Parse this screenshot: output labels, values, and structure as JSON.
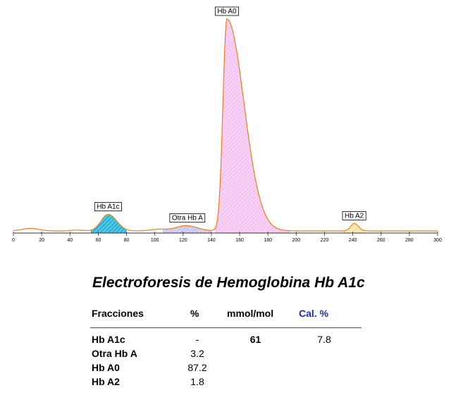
{
  "chart_data": {
    "type": "area",
    "title": "",
    "xlabel": "",
    "ylabel": "",
    "xlim": [
      0,
      300
    ],
    "x_ticks": [
      0,
      20,
      40,
      60,
      80,
      100,
      120,
      140,
      160,
      180,
      200,
      220,
      240,
      260,
      280,
      300
    ],
    "grid": false,
    "baseline": 0.01,
    "bumps": [
      {
        "center": 12,
        "sigma": 6,
        "height": 0.012
      },
      {
        "center": 45,
        "sigma": 4,
        "height": 0.004
      },
      {
        "center": 103,
        "sigma": 6,
        "height": 0.008
      }
    ],
    "peaks": [
      {
        "name": "Hb A1c",
        "center": 67,
        "apex": 67,
        "sigma_left": 5,
        "sigma_right": 6,
        "height": 0.078,
        "fill": "#29b6d9",
        "stroke": "#1a7d99",
        "start": 55,
        "end": 80
      },
      {
        "name": "Otra Hb A",
        "center": 122,
        "apex": 123,
        "sigma_left": 7,
        "sigma_right": 8,
        "height": 0.025,
        "fill": "#c9c6ef",
        "stroke": "#9a95d9",
        "start": 106,
        "end": 140
      },
      {
        "name": "Hb A0",
        "center": 151,
        "apex": 151,
        "sigma_left": 2.8,
        "sigma_right": 12,
        "height": 1.0,
        "fill": "#f4c6f1",
        "stroke": "#e086d9",
        "start": 143,
        "end": 196
      },
      {
        "name": "Hb A2",
        "center": 241,
        "apex": 241,
        "sigma_left": 2.5,
        "sigma_right": 3,
        "height": 0.035,
        "fill": "#f6e5a8",
        "stroke": "#c9a84b",
        "start": 234,
        "end": 249
      }
    ],
    "colors": {
      "trace": "#f07d1a",
      "axis": "#333333"
    }
  },
  "report": {
    "title": "Electroforesis de Hemoglobina Hb A1c",
    "headers": {
      "fractions": "Fracciones",
      "percent": "%",
      "mmol": "mmol/mol",
      "cal": "Cal. %"
    },
    "rows": [
      {
        "name": "Hb A1c",
        "percent": "-",
        "mmol": "61",
        "cal": "7.8"
      },
      {
        "name": "Otra Hb A",
        "percent": "3.2",
        "mmol": "",
        "cal": ""
      },
      {
        "name": "Hb A0",
        "percent": "87.2",
        "mmol": "",
        "cal": ""
      },
      {
        "name": "Hb A2",
        "percent": "1.8",
        "mmol": "",
        "cal": ""
      }
    ]
  }
}
